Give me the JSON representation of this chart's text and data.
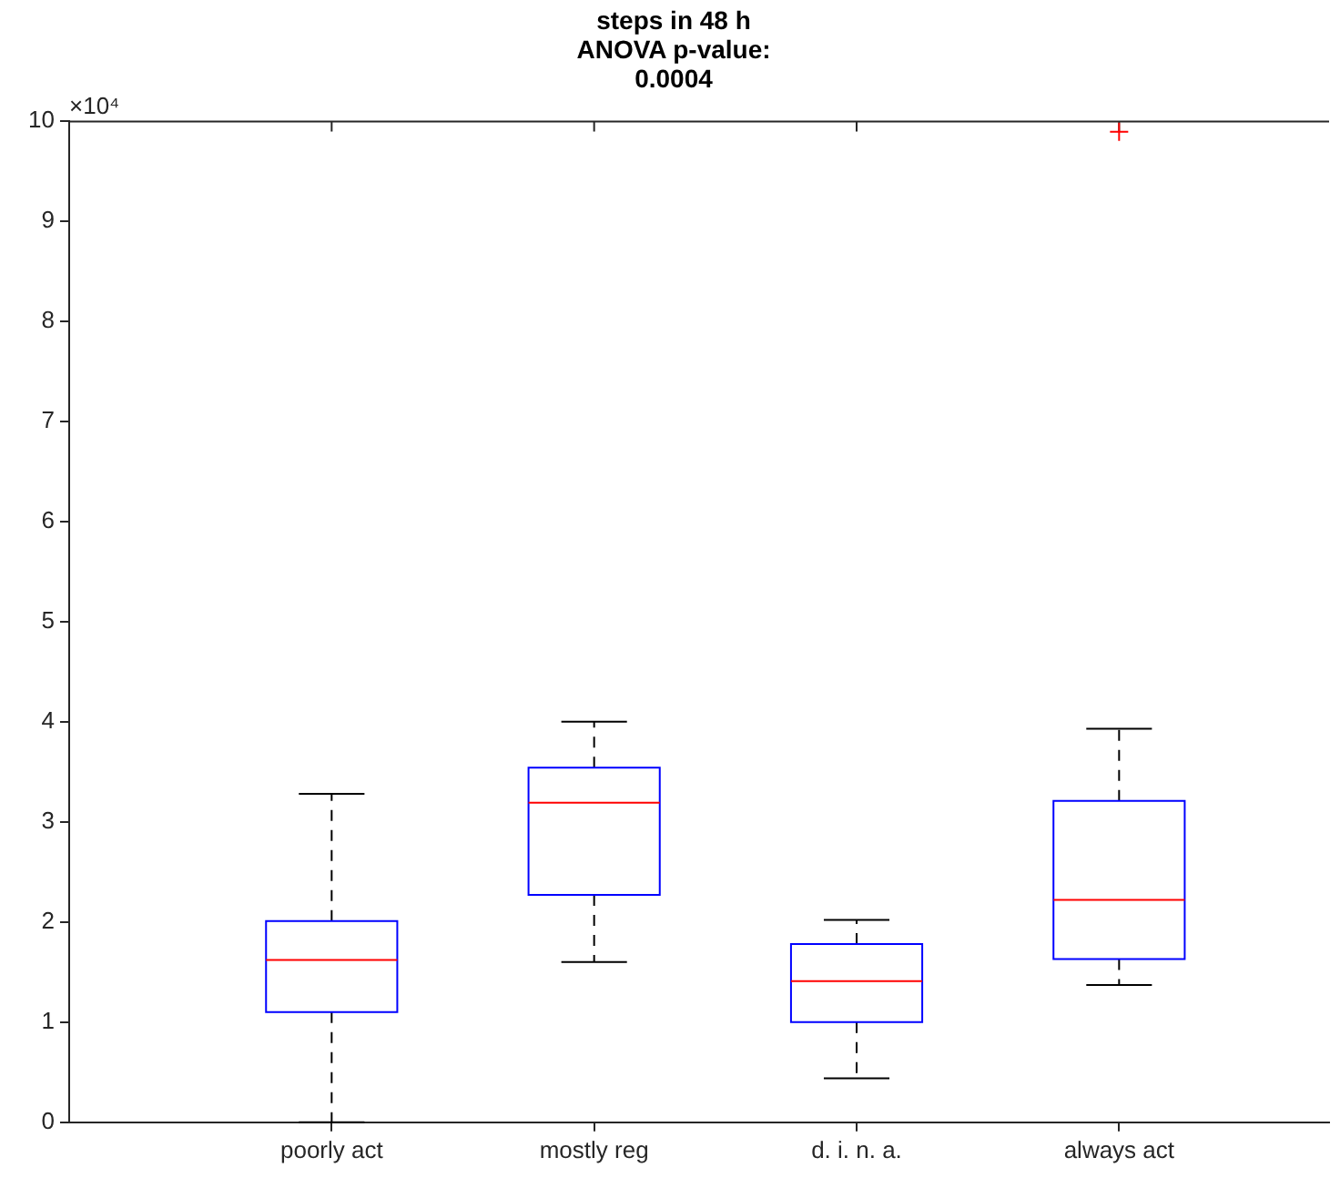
{
  "chart_data": {
    "type": "box",
    "title": "steps in 48 h\nANOVA p-value:\n0.0004",
    "categories": [
      "poorly act",
      "mostly reg",
      "d. i. n. a.",
      "always act"
    ],
    "color": "#0000ff",
    "boxes": [
      {
        "low": 0,
        "q1": 1.1,
        "median": 1.62,
        "q3": 2.01,
        "high": 3.28
      },
      {
        "low": 1.6,
        "q1": 2.27,
        "median": 3.19,
        "q3": 3.54,
        "high": 4.0
      },
      {
        "low": 0.44,
        "q1": 1.0,
        "median": 1.41,
        "q3": 1.78,
        "high": 2.02
      },
      {
        "low": 1.37,
        "q1": 1.63,
        "median": 2.22,
        "q3": 3.21,
        "high": 3.93,
        "outliers": [
          9.89
        ]
      }
    ],
    "ylim": [
      0,
      10
    ],
    "yticks": [
      0,
      1,
      2,
      3,
      4,
      5,
      6,
      7,
      8,
      9,
      10
    ],
    "annotations": [
      "×10⁴"
    ],
    "grid": false
  }
}
